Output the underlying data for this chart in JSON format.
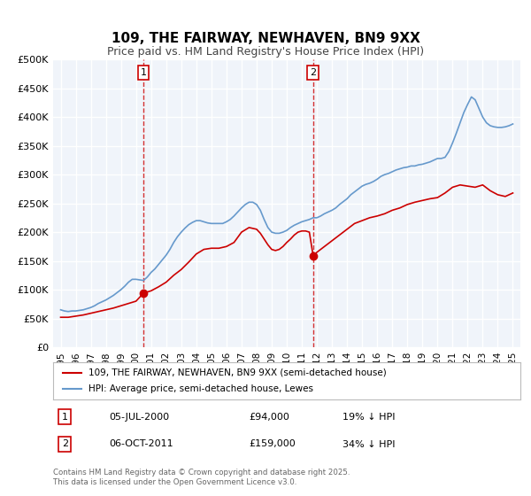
{
  "title": "109, THE FAIRWAY, NEWHAVEN, BN9 9XX",
  "subtitle": "Price paid vs. HM Land Registry's House Price Index (HPI)",
  "ylabel": "",
  "ylim": [
    0,
    500000
  ],
  "yticks": [
    0,
    50000,
    100000,
    150000,
    200000,
    250000,
    300000,
    350000,
    400000,
    450000,
    500000
  ],
  "ytick_labels": [
    "£0",
    "£50K",
    "£100K",
    "£150K",
    "£200K",
    "£250K",
    "£300K",
    "£350K",
    "£400K",
    "£450K",
    "£500K"
  ],
  "xlim_start": 1994.5,
  "xlim_end": 2025.5,
  "xticks": [
    1995,
    1996,
    1997,
    1998,
    1999,
    2000,
    2001,
    2002,
    2003,
    2004,
    2005,
    2006,
    2007,
    2008,
    2009,
    2010,
    2011,
    2012,
    2013,
    2014,
    2015,
    2016,
    2017,
    2018,
    2019,
    2020,
    2021,
    2022,
    2023,
    2024,
    2025
  ],
  "property_color": "#cc0000",
  "hpi_color": "#6699cc",
  "vline1_x": 2000.5,
  "vline2_x": 2011.75,
  "marker1_x": 2000.5,
  "marker1_y": 94000,
  "marker2_x": 2011.75,
  "marker2_y": 159000,
  "legend_label1": "109, THE FAIRWAY, NEWHAVEN, BN9 9XX (semi-detached house)",
  "legend_label2": "HPI: Average price, semi-detached house, Lewes",
  "annotation1_label": "1",
  "annotation1_date": "05-JUL-2000",
  "annotation1_price": "£94,000",
  "annotation1_hpi": "19% ↓ HPI",
  "annotation2_label": "2",
  "annotation2_date": "06-OCT-2011",
  "annotation2_price": "£159,000",
  "annotation2_hpi": "34% ↓ HPI",
  "footnote": "Contains HM Land Registry data © Crown copyright and database right 2025.\nThis data is licensed under the Open Government Licence v3.0.",
  "background_color": "#ffffff",
  "plot_bg_color": "#f0f4fa",
  "grid_color": "#ffffff",
  "hpi_data_x": [
    1995.0,
    1995.25,
    1995.5,
    1995.75,
    1996.0,
    1996.25,
    1996.5,
    1996.75,
    1997.0,
    1997.25,
    1997.5,
    1997.75,
    1998.0,
    1998.25,
    1998.5,
    1998.75,
    1999.0,
    1999.25,
    1999.5,
    1999.75,
    2000.0,
    2000.25,
    2000.5,
    2000.75,
    2001.0,
    2001.25,
    2001.5,
    2001.75,
    2002.0,
    2002.25,
    2002.5,
    2002.75,
    2003.0,
    2003.25,
    2003.5,
    2003.75,
    2004.0,
    2004.25,
    2004.5,
    2004.75,
    2005.0,
    2005.25,
    2005.5,
    2005.75,
    2006.0,
    2006.25,
    2006.5,
    2006.75,
    2007.0,
    2007.25,
    2007.5,
    2007.75,
    2008.0,
    2008.25,
    2008.5,
    2008.75,
    2009.0,
    2009.25,
    2009.5,
    2009.75,
    2010.0,
    2010.25,
    2010.5,
    2010.75,
    2011.0,
    2011.25,
    2011.5,
    2011.75,
    2012.0,
    2012.25,
    2012.5,
    2012.75,
    2013.0,
    2013.25,
    2013.5,
    2013.75,
    2014.0,
    2014.25,
    2014.5,
    2014.75,
    2015.0,
    2015.25,
    2015.5,
    2015.75,
    2016.0,
    2016.25,
    2016.5,
    2016.75,
    2017.0,
    2017.25,
    2017.5,
    2017.75,
    2018.0,
    2018.25,
    2018.5,
    2018.75,
    2019.0,
    2019.25,
    2019.5,
    2019.75,
    2020.0,
    2020.25,
    2020.5,
    2020.75,
    2021.0,
    2021.25,
    2021.5,
    2021.75,
    2022.0,
    2022.25,
    2022.5,
    2022.75,
    2023.0,
    2023.25,
    2023.5,
    2023.75,
    2024.0,
    2024.25,
    2024.5,
    2024.75,
    2025.0
  ],
  "hpi_data_y": [
    65000,
    63000,
    62000,
    63000,
    63000,
    64000,
    65000,
    67000,
    69000,
    72000,
    76000,
    79000,
    82000,
    86000,
    90000,
    95000,
    100000,
    106000,
    113000,
    118000,
    118000,
    117000,
    116000,
    122000,
    130000,
    136000,
    144000,
    152000,
    160000,
    170000,
    182000,
    192000,
    200000,
    207000,
    213000,
    217000,
    220000,
    220000,
    218000,
    216000,
    215000,
    215000,
    215000,
    215000,
    218000,
    222000,
    228000,
    235000,
    242000,
    248000,
    252000,
    252000,
    248000,
    238000,
    222000,
    208000,
    200000,
    198000,
    198000,
    200000,
    203000,
    208000,
    212000,
    215000,
    218000,
    220000,
    222000,
    225000,
    225000,
    228000,
    232000,
    235000,
    238000,
    242000,
    248000,
    253000,
    258000,
    265000,
    270000,
    275000,
    280000,
    283000,
    285000,
    288000,
    292000,
    297000,
    300000,
    302000,
    305000,
    308000,
    310000,
    312000,
    313000,
    315000,
    315000,
    317000,
    318000,
    320000,
    322000,
    325000,
    328000,
    328000,
    330000,
    340000,
    355000,
    372000,
    390000,
    408000,
    422000,
    435000,
    430000,
    415000,
    400000,
    390000,
    385000,
    383000,
    382000,
    382000,
    383000,
    385000,
    388000
  ],
  "property_data_x": [
    1995.0,
    1995.5,
    1996.0,
    1996.5,
    1997.0,
    1997.5,
    1998.0,
    1998.5,
    1999.0,
    1999.5,
    2000.0,
    2000.5,
    2001.0,
    2001.5,
    2002.0,
    2002.5,
    2003.0,
    2003.5,
    2004.0,
    2004.5,
    2005.0,
    2005.5,
    2006.0,
    2006.5,
    2007.0,
    2007.5,
    2008.0,
    2008.25,
    2008.5,
    2008.75,
    2009.0,
    2009.25,
    2009.5,
    2009.75,
    2010.0,
    2010.25,
    2010.5,
    2010.75,
    2011.0,
    2011.25,
    2011.5,
    2011.75,
    2012.0,
    2012.5,
    2013.0,
    2013.5,
    2014.0,
    2014.5,
    2015.0,
    2015.5,
    2016.0,
    2016.5,
    2017.0,
    2017.5,
    2018.0,
    2018.5,
    2019.0,
    2019.5,
    2020.0,
    2020.5,
    2021.0,
    2021.5,
    2022.0,
    2022.5,
    2023.0,
    2023.5,
    2024.0,
    2024.5,
    2025.0
  ],
  "property_data_y": [
    52000,
    52000,
    54000,
    56000,
    59000,
    62000,
    65000,
    68000,
    72000,
    76000,
    80000,
    94000,
    98000,
    105000,
    113000,
    125000,
    135000,
    148000,
    162000,
    170000,
    172000,
    172000,
    175000,
    182000,
    200000,
    208000,
    205000,
    198000,
    188000,
    178000,
    170000,
    168000,
    170000,
    175000,
    182000,
    188000,
    195000,
    200000,
    202000,
    202000,
    200000,
    159000,
    165000,
    175000,
    185000,
    195000,
    205000,
    215000,
    220000,
    225000,
    228000,
    232000,
    238000,
    242000,
    248000,
    252000,
    255000,
    258000,
    260000,
    268000,
    278000,
    282000,
    280000,
    278000,
    282000,
    272000,
    265000,
    262000,
    268000
  ]
}
